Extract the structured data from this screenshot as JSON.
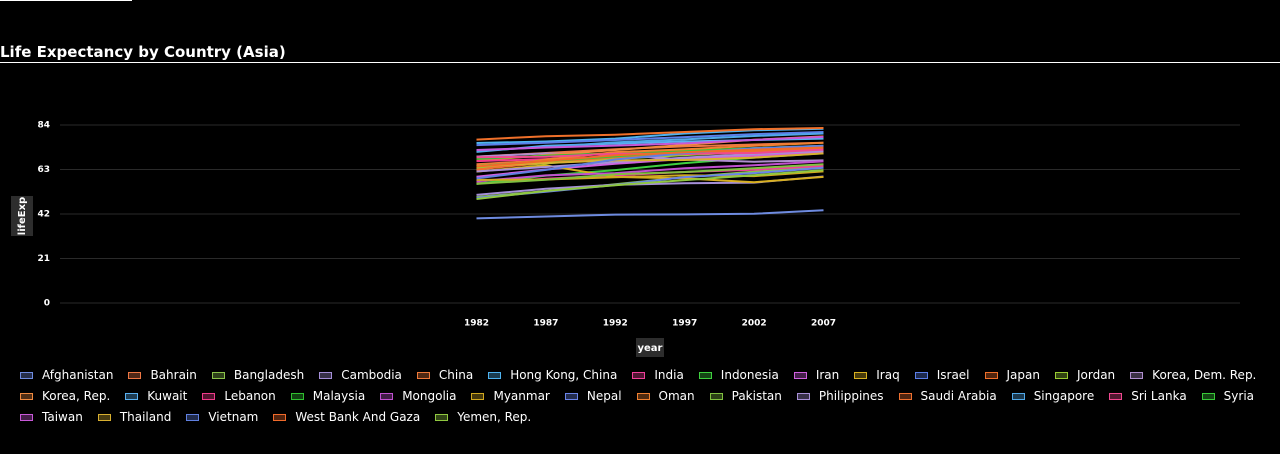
{
  "chart_data": {
    "type": "line",
    "title": "Life Expectancy by Country (Asia)",
    "xlabel": "year",
    "ylabel": "lifeExp",
    "x": [
      1982,
      1987,
      1992,
      1997,
      2002,
      2007
    ],
    "x_ticks": [
      "1982",
      "1987",
      "1992",
      "1997",
      "2002",
      "2007"
    ],
    "y_ticks": [
      "0",
      "21",
      "42",
      "63",
      "84"
    ],
    "ylim": [
      0,
      84
    ],
    "xlim": [
      1952,
      2037
    ],
    "grid": true,
    "legend_position": "bottom",
    "series": [
      {
        "name": "Afghanistan",
        "color": "#6e8be0",
        "values": [
          39.9,
          40.8,
          41.7,
          41.8,
          42.1,
          43.8
        ]
      },
      {
        "name": "Bahrain",
        "color": "#ee7744",
        "values": [
          69.1,
          70.8,
          72.6,
          73.9,
          74.8,
          75.6
        ]
      },
      {
        "name": "Bangladesh",
        "color": "#8bc34a",
        "values": [
          50.0,
          52.8,
          56.0,
          59.4,
          62.0,
          64.1
        ]
      },
      {
        "name": "Cambodia",
        "color": "#a58fd8",
        "values": [
          51.0,
          53.9,
          55.8,
          56.5,
          56.8,
          59.7
        ]
      },
      {
        "name": "China",
        "color": "#f07a3a",
        "values": [
          65.5,
          67.3,
          68.7,
          70.4,
          72.0,
          73.0
        ]
      },
      {
        "name": "Hong Kong, China",
        "color": "#4fb3f0",
        "values": [
          75.5,
          76.2,
          77.6,
          80.0,
          81.5,
          82.2
        ]
      },
      {
        "name": "India",
        "color": "#f0409a",
        "values": [
          56.6,
          58.6,
          60.2,
          61.8,
          62.9,
          64.7
        ]
      },
      {
        "name": "Indonesia",
        "color": "#3fd03f",
        "values": [
          56.2,
          60.1,
          62.7,
          66.0,
          68.6,
          70.7
        ]
      },
      {
        "name": "Iran",
        "color": "#d060e0",
        "values": [
          59.6,
          63.0,
          65.7,
          68.0,
          69.5,
          71.0
        ]
      },
      {
        "name": "Iraq",
        "color": "#d8b020",
        "values": [
          62.0,
          65.0,
          59.5,
          58.8,
          57.0,
          59.5
        ]
      },
      {
        "name": "Israel",
        "color": "#5b7ee8",
        "values": [
          74.5,
          75.6,
          76.9,
          78.3,
          79.7,
          80.7
        ]
      },
      {
        "name": "Japan",
        "color": "#f0702a",
        "values": [
          77.1,
          78.7,
          79.4,
          80.7,
          82.0,
          82.6
        ]
      },
      {
        "name": "Jordan",
        "color": "#9acd32",
        "values": [
          63.7,
          65.9,
          68.0,
          69.8,
          71.3,
          72.5
        ]
      },
      {
        "name": "Korea, Dem. Rep.",
        "color": "#b08fd0",
        "values": [
          69.1,
          70.6,
          69.98,
          67.7,
          66.7,
          67.3
        ]
      },
      {
        "name": "Korea, Rep.",
        "color": "#f08a40",
        "values": [
          67.1,
          69.8,
          72.2,
          74.6,
          77.0,
          78.6
        ]
      },
      {
        "name": "Kuwait",
        "color": "#5ab0f0",
        "values": [
          71.3,
          74.2,
          75.2,
          76.2,
          76.9,
          77.6
        ]
      },
      {
        "name": "Lebanon",
        "color": "#f03a8a",
        "values": [
          66.98,
          67.9,
          69.3,
          70.3,
          71.0,
          72.0
        ]
      },
      {
        "name": "Malaysia",
        "color": "#30c030",
        "values": [
          68.0,
          69.5,
          70.7,
          71.9,
          73.0,
          74.2
        ]
      },
      {
        "name": "Mongolia",
        "color": "#c050d0",
        "values": [
          57.5,
          60.2,
          61.3,
          63.6,
          65.0,
          66.8
        ]
      },
      {
        "name": "Myanmar",
        "color": "#d0a820",
        "values": [
          58.1,
          58.3,
          59.3,
          60.3,
          59.9,
          62.1
        ]
      },
      {
        "name": "Nepal",
        "color": "#6a84e8",
        "values": [
          49.6,
          52.5,
          55.7,
          59.4,
          61.3,
          63.8
        ]
      },
      {
        "name": "Oman",
        "color": "#f08030",
        "values": [
          62.7,
          67.7,
          71.2,
          72.5,
          74.2,
          75.6
        ]
      },
      {
        "name": "Pakistan",
        "color": "#80c040",
        "values": [
          56.2,
          58.2,
          60.8,
          61.8,
          63.6,
          65.5
        ]
      },
      {
        "name": "Philippines",
        "color": "#a890d8",
        "values": [
          62.1,
          64.2,
          66.5,
          68.6,
          70.3,
          71.7
        ]
      },
      {
        "name": "Saudi Arabia",
        "color": "#ee7030",
        "values": [
          63.0,
          66.3,
          68.8,
          70.5,
          71.6,
          72.8
        ]
      },
      {
        "name": "Singapore",
        "color": "#50a8e8",
        "values": [
          71.8,
          73.6,
          75.8,
          77.2,
          78.8,
          80.0
        ]
      },
      {
        "name": "Sri Lanka",
        "color": "#f04890",
        "values": [
          68.8,
          69.0,
          70.4,
          70.5,
          70.8,
          72.4
        ]
      },
      {
        "name": "Syria",
        "color": "#38c838",
        "values": [
          64.6,
          66.97,
          69.2,
          71.5,
          73.1,
          74.1
        ]
      },
      {
        "name": "Taiwan",
        "color": "#c858d8",
        "values": [
          72.2,
          73.4,
          74.3,
          75.3,
          76.99,
          78.4
        ]
      },
      {
        "name": "Thailand",
        "color": "#d8b030",
        "values": [
          64.6,
          66.1,
          67.3,
          67.5,
          68.6,
          70.6
        ]
      },
      {
        "name": "Vietnam",
        "color": "#6080e0",
        "values": [
          58.8,
          62.8,
          67.7,
          70.7,
          73.0,
          74.2
        ]
      },
      {
        "name": "West Bank And Gaza",
        "color": "#f06a2a",
        "values": [
          64.4,
          67.0,
          69.7,
          71.1,
          72.4,
          73.4
        ]
      },
      {
        "name": "Yemen, Rep.",
        "color": "#90c840",
        "values": [
          49.1,
          52.9,
          55.6,
          58.0,
          60.3,
          62.7
        ]
      }
    ]
  }
}
